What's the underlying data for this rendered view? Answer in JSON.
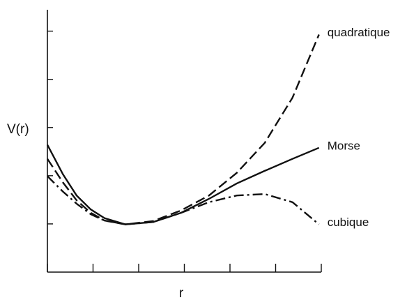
{
  "chart_data": {
    "type": "line",
    "ylabel": "V(r)",
    "xlabel": "r",
    "x": [
      0,
      0.34,
      0.64,
      0.95,
      1.25,
      1.71,
      2.32,
      2.93,
      3.54,
      4.15,
      4.76,
      5.37,
      5.95
    ],
    "series": [
      {
        "name": "quadratique",
        "color": "#111111",
        "style": "dashed",
        "values": [
          2.35,
          1.86,
          1.49,
          1.23,
          1.07,
          0.99,
          1.06,
          1.28,
          1.59,
          2.06,
          2.68,
          3.62,
          4.93
        ]
      },
      {
        "name": "Morse",
        "color": "#111111",
        "style": "solid",
        "values": [
          2.64,
          2.03,
          1.59,
          1.3,
          1.12,
          0.99,
          1.04,
          1.23,
          1.52,
          1.84,
          2.1,
          2.35,
          2.58
        ]
      },
      {
        "name": "cubique",
        "color": "#111111",
        "style": "dashdot",
        "values": [
          1.99,
          1.67,
          1.42,
          1.2,
          1.07,
          0.99,
          1.04,
          1.23,
          1.45,
          1.59,
          1.62,
          1.45,
          0.99
        ]
      }
    ],
    "xlim": [
      0,
      6
    ],
    "xticks": [
      0,
      1,
      2,
      3,
      4,
      5,
      6
    ],
    "ylim": [
      0,
      5.4
    ],
    "yticks": [
      1,
      2,
      3,
      4,
      5
    ],
    "grid": false
  }
}
